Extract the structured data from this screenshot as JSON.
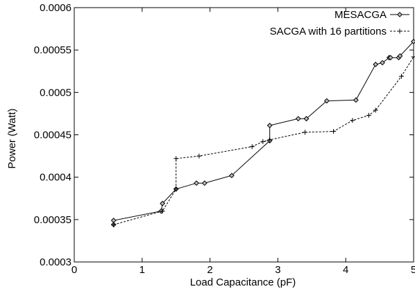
{
  "chart_data": {
    "type": "line",
    "xlabel": "Load Capacitance (pF)",
    "ylabel": "Power (Watt)",
    "xlim": [
      0,
      5
    ],
    "ylim": [
      0.0003,
      0.0006
    ],
    "xticks": [
      "0",
      "1",
      "2",
      "3",
      "4",
      "5"
    ],
    "yticks": [
      "0.0003",
      "0.00035",
      "0.0004",
      "0.00045",
      "0.0005",
      "0.00055",
      "0.0006"
    ],
    "grid": false,
    "legend_position": "top-right",
    "series": [
      {
        "name": "MESACGA",
        "line_style": "solid",
        "marker": "diamond",
        "x": [
          0.58,
          0.58,
          1.28,
          1.3,
          1.5,
          1.8,
          1.92,
          2.32,
          2.88,
          2.88,
          3.3,
          3.42,
          3.42,
          3.72,
          4.15,
          4.44,
          4.54,
          4.64,
          4.66,
          4.78,
          4.8,
          5.0
        ],
        "y": [
          0.000344,
          0.000349,
          0.00036,
          0.000369,
          0.000386,
          0.000393,
          0.000393,
          0.000402,
          0.000443,
          0.000461,
          0.000469,
          0.000469,
          0.000469,
          0.00049,
          0.000491,
          0.000533,
          0.000535,
          0.000541,
          0.000541,
          0.000541,
          0.000543,
          0.00056
        ]
      },
      {
        "name": "SACGA with 16 partitions",
        "line_style": "dashed",
        "marker": "plus",
        "x": [
          0.58,
          1.3,
          1.5,
          1.5,
          1.84,
          2.62,
          2.78,
          2.88,
          3.4,
          3.82,
          4.1,
          4.34,
          4.44,
          4.82,
          5.0
        ],
        "y": [
          0.000344,
          0.00036,
          0.000386,
          0.000422,
          0.000425,
          0.000436,
          0.000442,
          0.000444,
          0.000453,
          0.000454,
          0.000467,
          0.000473,
          0.000479,
          0.000519,
          0.000542
        ]
      }
    ]
  }
}
